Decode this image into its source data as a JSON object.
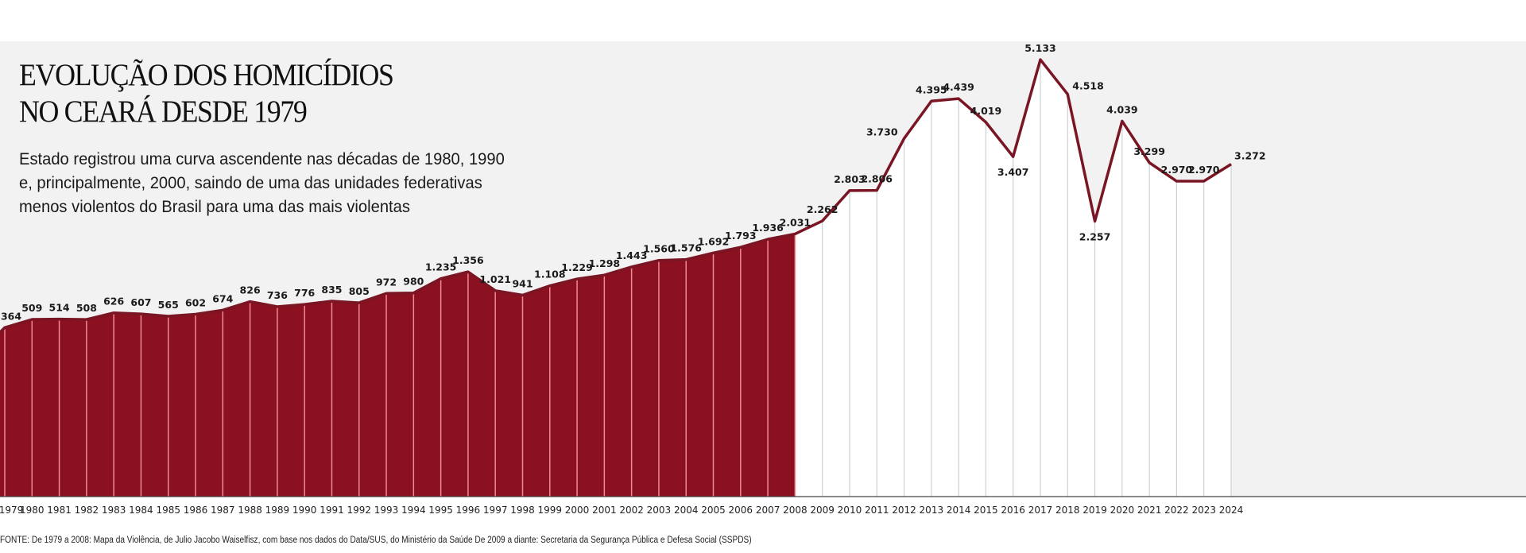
{
  "header": {
    "title_lines": [
      "EVOLUÇÃO DOS HOMICÍDIOS",
      "NO CEARÁ DESDE 1979"
    ],
    "subtitle_lines": [
      "Estado registrou uma curva ascendente nas décadas de 1980, 1990",
      "e, principalmente, 2000, saindo de uma das unidades federativas",
      "menos violentos do Brasil para uma das mais violentas"
    ]
  },
  "source": "FONTE: De 1979 a 2008: Mapa da Violência, de Julio Jacobo Waiselfisz, com base nos dados do Data/SUS, do Ministério da Saúde De 2009 a diante: Secretaria da Segurança Pública e Defesa Social (SSPDS)",
  "colors": {
    "area_fill": "#8b1020",
    "line": "#7a1524",
    "background": "#f2f2f2",
    "gridline_light": "#c8d2d6",
    "gridline_dark": "#f08a94"
  },
  "chart_data": {
    "type": "area",
    "title": "EVOLUÇÃO DOS HOMICÍDIOS NO CEARÁ DESDE 1979",
    "xlabel": "",
    "ylabel": "",
    "grid": true,
    "filled_through": "2008",
    "x": [
      "1979",
      "1980",
      "1981",
      "1982",
      "1983",
      "1984",
      "1985",
      "1986",
      "1987",
      "1988",
      "1989",
      "1990",
      "1991",
      "1992",
      "1993",
      "1994",
      "1995",
      "1996",
      "1997",
      "1998",
      "1999",
      "2000",
      "2001",
      "2002",
      "2003",
      "2004",
      "2005",
      "2006",
      "2007",
      "2008",
      "2009",
      "2010",
      "2011",
      "2012",
      "2013",
      "2014",
      "2015",
      "2016",
      "2017",
      "2018",
      "2019",
      "2020",
      "2021",
      "2022",
      "2023",
      "2024"
    ],
    "values": [
      364,
      509,
      514,
      508,
      626,
      607,
      565,
      602,
      674,
      826,
      736,
      776,
      835,
      805,
      972,
      980,
      1235,
      1356,
      1021,
      941,
      1108,
      1229,
      1298,
      1443,
      1560,
      1576,
      1692,
      1793,
      1936,
      2031,
      2262,
      2803,
      2806,
      3730,
      4395,
      4439,
      4019,
      3407,
      5133,
      4518,
      2257,
      4039,
      3299,
      2970,
      2970,
      3272
    ],
    "labels": [
      "364",
      "509",
      "514",
      "508",
      "626",
      "607",
      "565",
      "602",
      "674",
      "826",
      "736",
      "776",
      "835",
      "805",
      "972",
      "980",
      "1.235",
      "1.356",
      "1.021",
      "941",
      "1.108",
      "1.229",
      "1.298",
      "1.443",
      "1.560",
      "1.576",
      "1.692",
      "1.793",
      "1.936",
      "2.031",
      "2.262",
      "2.803",
      "2.806",
      "3.730",
      "4.395",
      "4.439",
      "4.019",
      "3.407",
      "5.133",
      "4.518",
      "2.257",
      "4.039",
      "3.299",
      "2.970",
      "2.970",
      "3.272"
    ],
    "label_position": [
      "above",
      "above",
      "above",
      "above",
      "above",
      "above",
      "above",
      "above",
      "above",
      "above",
      "above",
      "above",
      "above",
      "above",
      "above",
      "above",
      "above",
      "above",
      "above",
      "above",
      "above",
      "above",
      "above",
      "above",
      "above",
      "above",
      "above",
      "above",
      "above",
      "above",
      "above",
      "above",
      "above",
      "left",
      "above",
      "above",
      "above",
      "below",
      "above",
      "right",
      "below",
      "above",
      "above",
      "above",
      "above",
      "above"
    ]
  }
}
